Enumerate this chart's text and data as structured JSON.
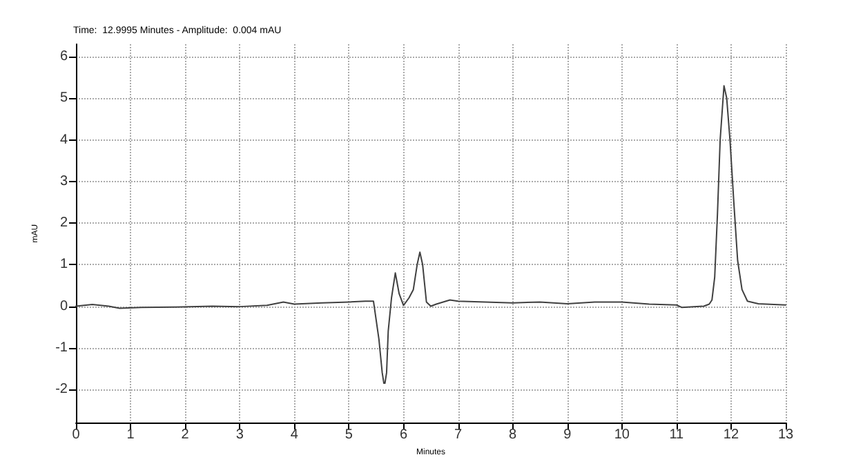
{
  "chart_data": {
    "type": "line",
    "title": "Time:  12.9995 Minutes - Amplitude:  0.004 mAU",
    "xlabel": "Minutes",
    "ylabel": "mAU",
    "x": [
      0,
      0.3,
      0.6,
      0.8,
      1.2,
      1.8,
      2.5,
      3.0,
      3.5,
      3.8,
      4.0,
      4.5,
      5.0,
      5.3,
      5.45,
      5.55,
      5.61,
      5.64,
      5.66,
      5.69,
      5.72,
      5.78,
      5.85,
      5.92,
      6.0,
      6.1,
      6.18,
      6.25,
      6.3,
      6.35,
      6.42,
      6.5,
      6.6,
      6.85,
      7.0,
      7.5,
      8.0,
      8.5,
      9.0,
      9.5,
      10.0,
      10.5,
      11.0,
      11.1,
      11.5,
      11.6,
      11.65,
      11.7,
      11.75,
      11.8,
      11.87,
      11.92,
      11.98,
      12.05,
      12.12,
      12.2,
      12.3,
      12.5,
      13.0
    ],
    "series": [
      {
        "color": "#404040",
        "values": [
          0.0,
          0.04,
          0.0,
          -0.05,
          -0.03,
          -0.02,
          0.0,
          -0.01,
          0.02,
          0.1,
          0.05,
          0.08,
          0.1,
          0.12,
          0.12,
          -0.8,
          -1.6,
          -1.85,
          -1.85,
          -1.6,
          -0.6,
          0.2,
          0.8,
          0.3,
          0.02,
          0.2,
          0.4,
          1.0,
          1.3,
          1.0,
          0.1,
          0.0,
          0.05,
          0.15,
          0.12,
          0.1,
          0.08,
          0.1,
          0.06,
          0.1,
          0.1,
          0.05,
          0.03,
          -0.03,
          0.0,
          0.05,
          0.15,
          0.7,
          2.2,
          4.0,
          5.3,
          5.0,
          4.0,
          2.5,
          1.1,
          0.4,
          0.12,
          0.06,
          0.03
        ]
      }
    ],
    "xlim": [
      0,
      13
    ],
    "xticks": [
      0,
      1,
      2,
      3,
      4,
      5,
      6,
      7,
      8,
      9,
      10,
      11,
      12,
      13
    ],
    "ylim": [
      -2.8,
      6.3
    ],
    "yticks": [
      -2,
      -1,
      0,
      1,
      2,
      3,
      4,
      5,
      6
    ],
    "grid": true,
    "marker": "none",
    "line_style": "solid"
  }
}
